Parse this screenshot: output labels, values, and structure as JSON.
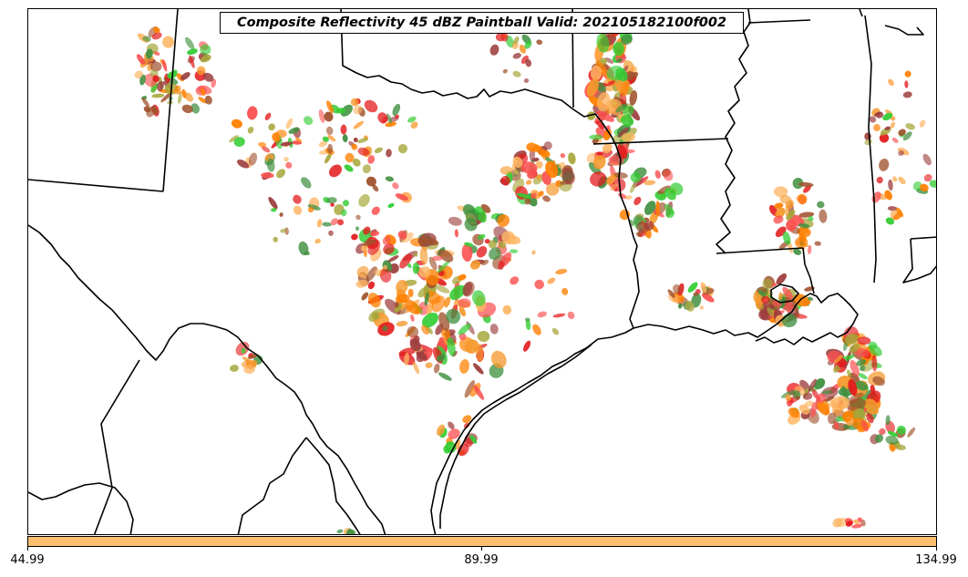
{
  "title": "Composite Reflectivity 45 dBZ Paintball Valid: 202105182100f002",
  "colors": {
    "colorbar_fill": "#FDBF6F",
    "paint_orange": "#FF7F00",
    "paint_dark_orange": "#F59A2E",
    "paint_light_orange": "#FDB462",
    "paint_red": "#E31A1C",
    "paint_light_red": "#FB4F4F",
    "paint_green": "#33CC33",
    "paint_dark_green": "#3F8F3F",
    "paint_olive": "#A6A63A",
    "paint_brown": "#A0522D",
    "paint_maroon": "#9C3D3D",
    "boundary_line": "#000000"
  },
  "colorbar": {
    "ticks": [
      "44.99",
      "89.99",
      "134.99"
    ]
  }
}
